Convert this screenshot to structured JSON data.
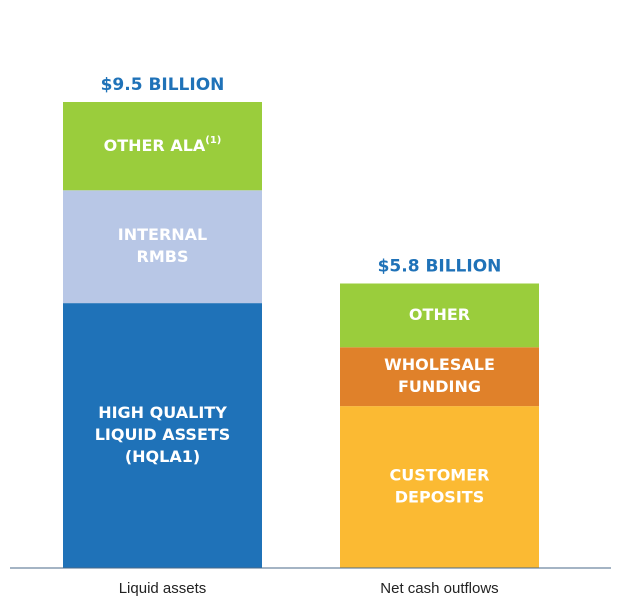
{
  "chart_data": {
    "type": "stacked_bar",
    "categories": [
      "Liquid assets",
      "Net cash outflows"
    ],
    "ylim": [
      0,
      9.5
    ],
    "bars": [
      {
        "total": 9.5,
        "total_label": "$9.5 BILLION",
        "segments": [
          {
            "lines": [
              "HIGH QUALITY",
              "LIQUID ASSETS",
              "(HQLA1)"
            ],
            "value": 5.4,
            "color": "#1f72b8"
          },
          {
            "lines": [
              "INTERNAL",
              "RMBS"
            ],
            "value": 2.3,
            "color": "#b8c7e6"
          },
          {
            "lines": [
              "OTHER ALA"
            ],
            "note": "(1)",
            "value": 1.8,
            "color": "#9acd3c"
          }
        ]
      },
      {
        "total": 5.8,
        "total_label": "$5.8 BILLION",
        "segments": [
          {
            "lines": [
              "CUSTOMER",
              "DEPOSITS"
            ],
            "value": 3.3,
            "color": "#fbba33"
          },
          {
            "lines": [
              "WHOLESALE",
              "FUNDING"
            ],
            "value": 1.2,
            "color": "#e0812a"
          },
          {
            "lines": [
              "OTHER"
            ],
            "value": 1.3,
            "color": "#9acd3c"
          }
        ]
      }
    ]
  }
}
